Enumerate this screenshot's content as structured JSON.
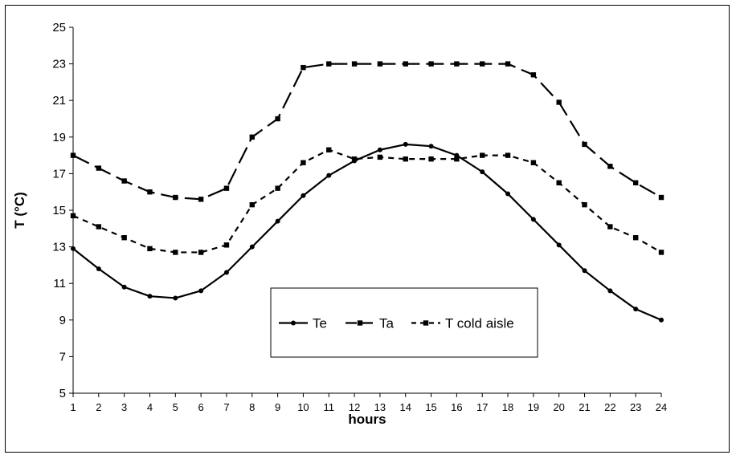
{
  "chart_data": {
    "type": "line",
    "title": "",
    "xlabel": "hours",
    "ylabel": "T (°C)",
    "x": [
      1,
      2,
      3,
      4,
      5,
      6,
      7,
      8,
      9,
      10,
      11,
      12,
      13,
      14,
      15,
      16,
      17,
      18,
      19,
      20,
      21,
      22,
      23,
      24
    ],
    "ylim": [
      5,
      25
    ],
    "yticks": [
      5,
      7,
      9,
      11,
      13,
      15,
      17,
      19,
      21,
      23,
      25
    ],
    "grid": false,
    "legend_position": "center-bottom",
    "series": [
      {
        "name": "Te",
        "style": "solid",
        "marker": "circle",
        "values": [
          12.9,
          11.8,
          10.8,
          10.3,
          10.2,
          10.6,
          11.6,
          13.0,
          14.4,
          15.8,
          16.9,
          17.7,
          18.3,
          18.6,
          18.5,
          18.0,
          17.1,
          15.9,
          14.5,
          13.1,
          11.7,
          10.6,
          9.6,
          9.0
        ]
      },
      {
        "name": "Ta",
        "style": "long-dash",
        "marker": "square",
        "values": [
          18.0,
          17.3,
          16.6,
          16.0,
          15.7,
          15.6,
          16.2,
          19.0,
          20.0,
          22.8,
          23.0,
          23.0,
          23.0,
          23.0,
          23.0,
          23.0,
          23.0,
          23.0,
          22.4,
          20.9,
          18.6,
          17.4,
          16.5,
          15.7
        ]
      },
      {
        "name": "T cold aisle",
        "style": "short-dash",
        "marker": "square",
        "values": [
          14.7,
          14.1,
          13.5,
          12.9,
          12.7,
          12.7,
          13.1,
          15.3,
          16.2,
          17.6,
          18.3,
          17.8,
          17.9,
          17.8,
          17.8,
          17.8,
          18.0,
          18.0,
          17.6,
          16.5,
          15.3,
          14.1,
          13.5,
          12.7
        ]
      }
    ],
    "line_color": "#000000"
  }
}
